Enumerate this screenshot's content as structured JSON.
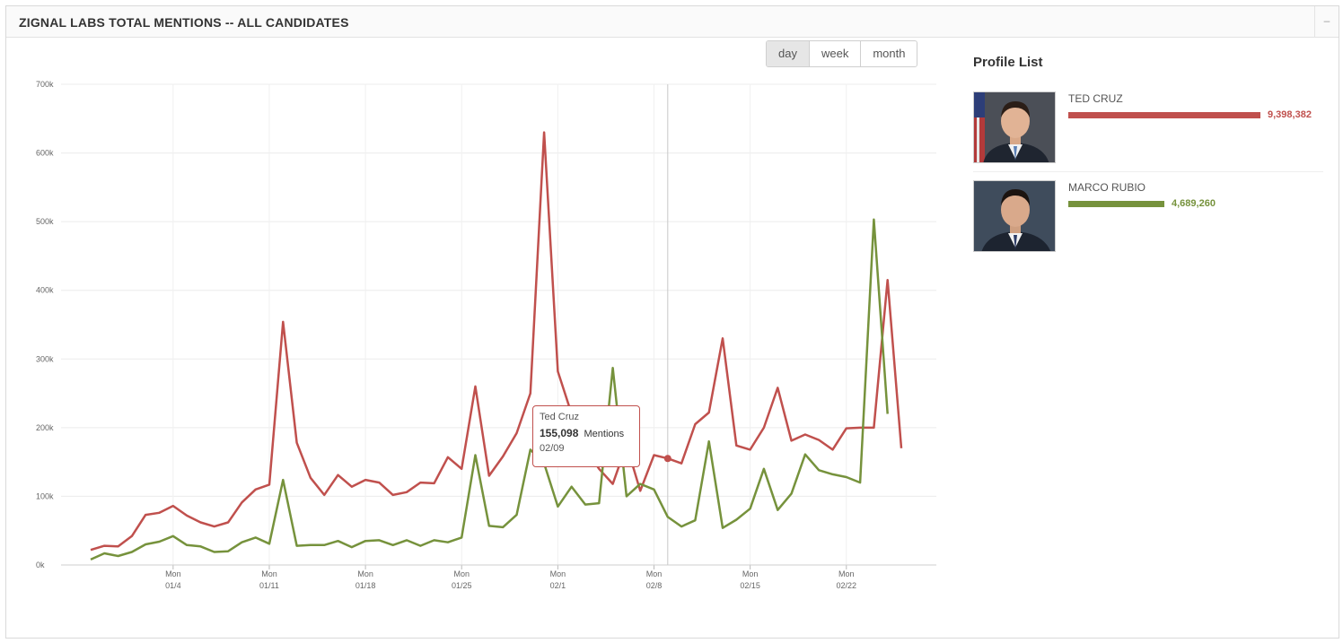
{
  "panel": {
    "title": "ZIGNAL LABS TOTAL MENTIONS -- ALL CANDIDATES",
    "collapse_symbol": "–"
  },
  "range_buttons": [
    {
      "label": "day",
      "active": true
    },
    {
      "label": "week",
      "active": false
    },
    {
      "label": "month",
      "active": false
    }
  ],
  "tooltip": {
    "name": "Ted Cruz",
    "value": "155,098",
    "unit": "Mentions",
    "date": "02/09"
  },
  "profile_list": {
    "title": "Profile List",
    "profiles": [
      {
        "name": "TED CRUZ",
        "value": "9,398,382",
        "color": "#c0504d",
        "fraction": 1.0
      },
      {
        "name": "MARCO RUBIO",
        "value": "4,689,260",
        "color": "#76923c",
        "fraction": 0.499
      }
    ]
  },
  "chart_data": {
    "type": "line",
    "y_ticks": [
      {
        "value": 0,
        "label": "0k"
      },
      {
        "value": 100000,
        "label": "100k"
      },
      {
        "value": 200000,
        "label": "200k"
      },
      {
        "value": 300000,
        "label": "300k"
      },
      {
        "value": 400000,
        "label": "400k"
      },
      {
        "value": 500000,
        "label": "500k"
      },
      {
        "value": 600000,
        "label": "600k"
      },
      {
        "value": 700000,
        "label": "700k"
      }
    ],
    "ylim": [
      0,
      700000
    ],
    "x_range": [
      "12/29",
      "02/26"
    ],
    "x_ticks": [
      {
        "weekday": "Mon",
        "date": "01/4"
      },
      {
        "weekday": "Mon",
        "date": "01/11"
      },
      {
        "weekday": "Mon",
        "date": "01/18"
      },
      {
        "weekday": "Mon",
        "date": "01/25"
      },
      {
        "weekday": "Mon",
        "date": "02/1"
      },
      {
        "weekday": "Mon",
        "date": "02/8"
      },
      {
        "weekday": "Mon",
        "date": "02/15"
      },
      {
        "weekday": "Mon",
        "date": "02/22"
      }
    ],
    "hover_date": "02/09",
    "series": [
      {
        "name": "Ted Cruz",
        "color": "#c0504d",
        "values": [
          {
            "x": "12/29",
            "y": 22000
          },
          {
            "x": "12/30",
            "y": 28000
          },
          {
            "x": "12/31",
            "y": 27000
          },
          {
            "x": "01/01",
            "y": 42000
          },
          {
            "x": "01/02",
            "y": 73000
          },
          {
            "x": "01/03",
            "y": 76000
          },
          {
            "x": "01/04",
            "y": 86000
          },
          {
            "x": "01/05",
            "y": 72000
          },
          {
            "x": "01/06",
            "y": 62000
          },
          {
            "x": "01/07",
            "y": 56000
          },
          {
            "x": "01/08",
            "y": 62000
          },
          {
            "x": "01/09",
            "y": 91000
          },
          {
            "x": "01/10",
            "y": 110000
          },
          {
            "x": "01/11",
            "y": 117000
          },
          {
            "x": "01/12",
            "y": 354000
          },
          {
            "x": "01/13",
            "y": 178000
          },
          {
            "x": "01/14",
            "y": 127000
          },
          {
            "x": "01/15",
            "y": 102000
          },
          {
            "x": "01/16",
            "y": 131000
          },
          {
            "x": "01/17",
            "y": 114000
          },
          {
            "x": "01/18",
            "y": 124000
          },
          {
            "x": "01/19",
            "y": 120000
          },
          {
            "x": "01/20",
            "y": 102000
          },
          {
            "x": "01/21",
            "y": 106000
          },
          {
            "x": "01/22",
            "y": 120000
          },
          {
            "x": "01/23",
            "y": 119000
          },
          {
            "x": "01/24",
            "y": 157000
          },
          {
            "x": "01/25",
            "y": 140000
          },
          {
            "x": "01/26",
            "y": 260000
          },
          {
            "x": "01/27",
            "y": 130000
          },
          {
            "x": "01/28",
            "y": 158000
          },
          {
            "x": "01/29",
            "y": 192000
          },
          {
            "x": "01/30",
            "y": 250000
          },
          {
            "x": "01/31",
            "y": 630000
          },
          {
            "x": "02/01",
            "y": 282000
          },
          {
            "x": "02/02",
            "y": 220000
          },
          {
            "x": "02/03",
            "y": 170000
          },
          {
            "x": "02/04",
            "y": 140000
          },
          {
            "x": "02/05",
            "y": 118000
          },
          {
            "x": "02/06",
            "y": 175000
          },
          {
            "x": "02/07",
            "y": 108000
          },
          {
            "x": "02/08",
            "y": 160000
          },
          {
            "x": "02/09",
            "y": 155098
          },
          {
            "x": "02/10",
            "y": 148000
          },
          {
            "x": "02/11",
            "y": 205000
          },
          {
            "x": "02/12",
            "y": 222000
          },
          {
            "x": "02/13",
            "y": 330000
          },
          {
            "x": "02/14",
            "y": 174000
          },
          {
            "x": "02/15",
            "y": 168000
          },
          {
            "x": "02/16",
            "y": 200000
          },
          {
            "x": "02/17",
            "y": 258000
          },
          {
            "x": "02/18",
            "y": 181000
          },
          {
            "x": "02/19",
            "y": 190000
          },
          {
            "x": "02/20",
            "y": 182000
          },
          {
            "x": "02/21",
            "y": 168000
          },
          {
            "x": "02/22",
            "y": 199000
          },
          {
            "x": "02/23",
            "y": 200000
          },
          {
            "x": "02/24",
            "y": 200000
          },
          {
            "x": "02/25",
            "y": 415000
          },
          {
            "x": "02/26",
            "y": 170000
          }
        ]
      },
      {
        "name": "Marco Rubio",
        "color": "#76923c",
        "values": [
          {
            "x": "12/29",
            "y": 8000
          },
          {
            "x": "12/30",
            "y": 17000
          },
          {
            "x": "12/31",
            "y": 13000
          },
          {
            "x": "01/01",
            "y": 19000
          },
          {
            "x": "01/02",
            "y": 30000
          },
          {
            "x": "01/03",
            "y": 34000
          },
          {
            "x": "01/04",
            "y": 42000
          },
          {
            "x": "01/05",
            "y": 29000
          },
          {
            "x": "01/06",
            "y": 27000
          },
          {
            "x": "01/07",
            "y": 19000
          },
          {
            "x": "01/08",
            "y": 20000
          },
          {
            "x": "01/09",
            "y": 33000
          },
          {
            "x": "01/10",
            "y": 40000
          },
          {
            "x": "01/11",
            "y": 31000
          },
          {
            "x": "01/12",
            "y": 124000
          },
          {
            "x": "01/13",
            "y": 28000
          },
          {
            "x": "01/14",
            "y": 29000
          },
          {
            "x": "01/15",
            "y": 29000
          },
          {
            "x": "01/16",
            "y": 35000
          },
          {
            "x": "01/17",
            "y": 26000
          },
          {
            "x": "01/18",
            "y": 35000
          },
          {
            "x": "01/19",
            "y": 36000
          },
          {
            "x": "01/20",
            "y": 29000
          },
          {
            "x": "01/21",
            "y": 36000
          },
          {
            "x": "01/22",
            "y": 28000
          },
          {
            "x": "01/23",
            "y": 36000
          },
          {
            "x": "01/24",
            "y": 33000
          },
          {
            "x": "01/25",
            "y": 40000
          },
          {
            "x": "01/26",
            "y": 160000
          },
          {
            "x": "01/27",
            "y": 57000
          },
          {
            "x": "01/28",
            "y": 55000
          },
          {
            "x": "01/29",
            "y": 73000
          },
          {
            "x": "01/30",
            "y": 168000
          },
          {
            "x": "01/31",
            "y": 148000
          },
          {
            "x": "02/01",
            "y": 85000
          },
          {
            "x": "02/02",
            "y": 114000
          },
          {
            "x": "02/03",
            "y": 88000
          },
          {
            "x": "02/04",
            "y": 90000
          },
          {
            "x": "02/05",
            "y": 287000
          },
          {
            "x": "02/06",
            "y": 100000
          },
          {
            "x": "02/07",
            "y": 118000
          },
          {
            "x": "02/08",
            "y": 110000
          },
          {
            "x": "02/09",
            "y": 70000
          },
          {
            "x": "02/10",
            "y": 56000
          },
          {
            "x": "02/11",
            "y": 65000
          },
          {
            "x": "02/12",
            "y": 180000
          },
          {
            "x": "02/13",
            "y": 54000
          },
          {
            "x": "02/14",
            "y": 66000
          },
          {
            "x": "02/15",
            "y": 82000
          },
          {
            "x": "02/16",
            "y": 140000
          },
          {
            "x": "02/17",
            "y": 80000
          },
          {
            "x": "02/18",
            "y": 104000
          },
          {
            "x": "02/19",
            "y": 161000
          },
          {
            "x": "02/20",
            "y": 138000
          },
          {
            "x": "02/21",
            "y": 132000
          },
          {
            "x": "02/22",
            "y": 128000
          },
          {
            "x": "02/23",
            "y": 120000
          },
          {
            "x": "02/24",
            "y": 503000
          },
          {
            "x": "02/25",
            "y": 220000
          }
        ]
      }
    ],
    "grid": true,
    "legend": "none"
  }
}
